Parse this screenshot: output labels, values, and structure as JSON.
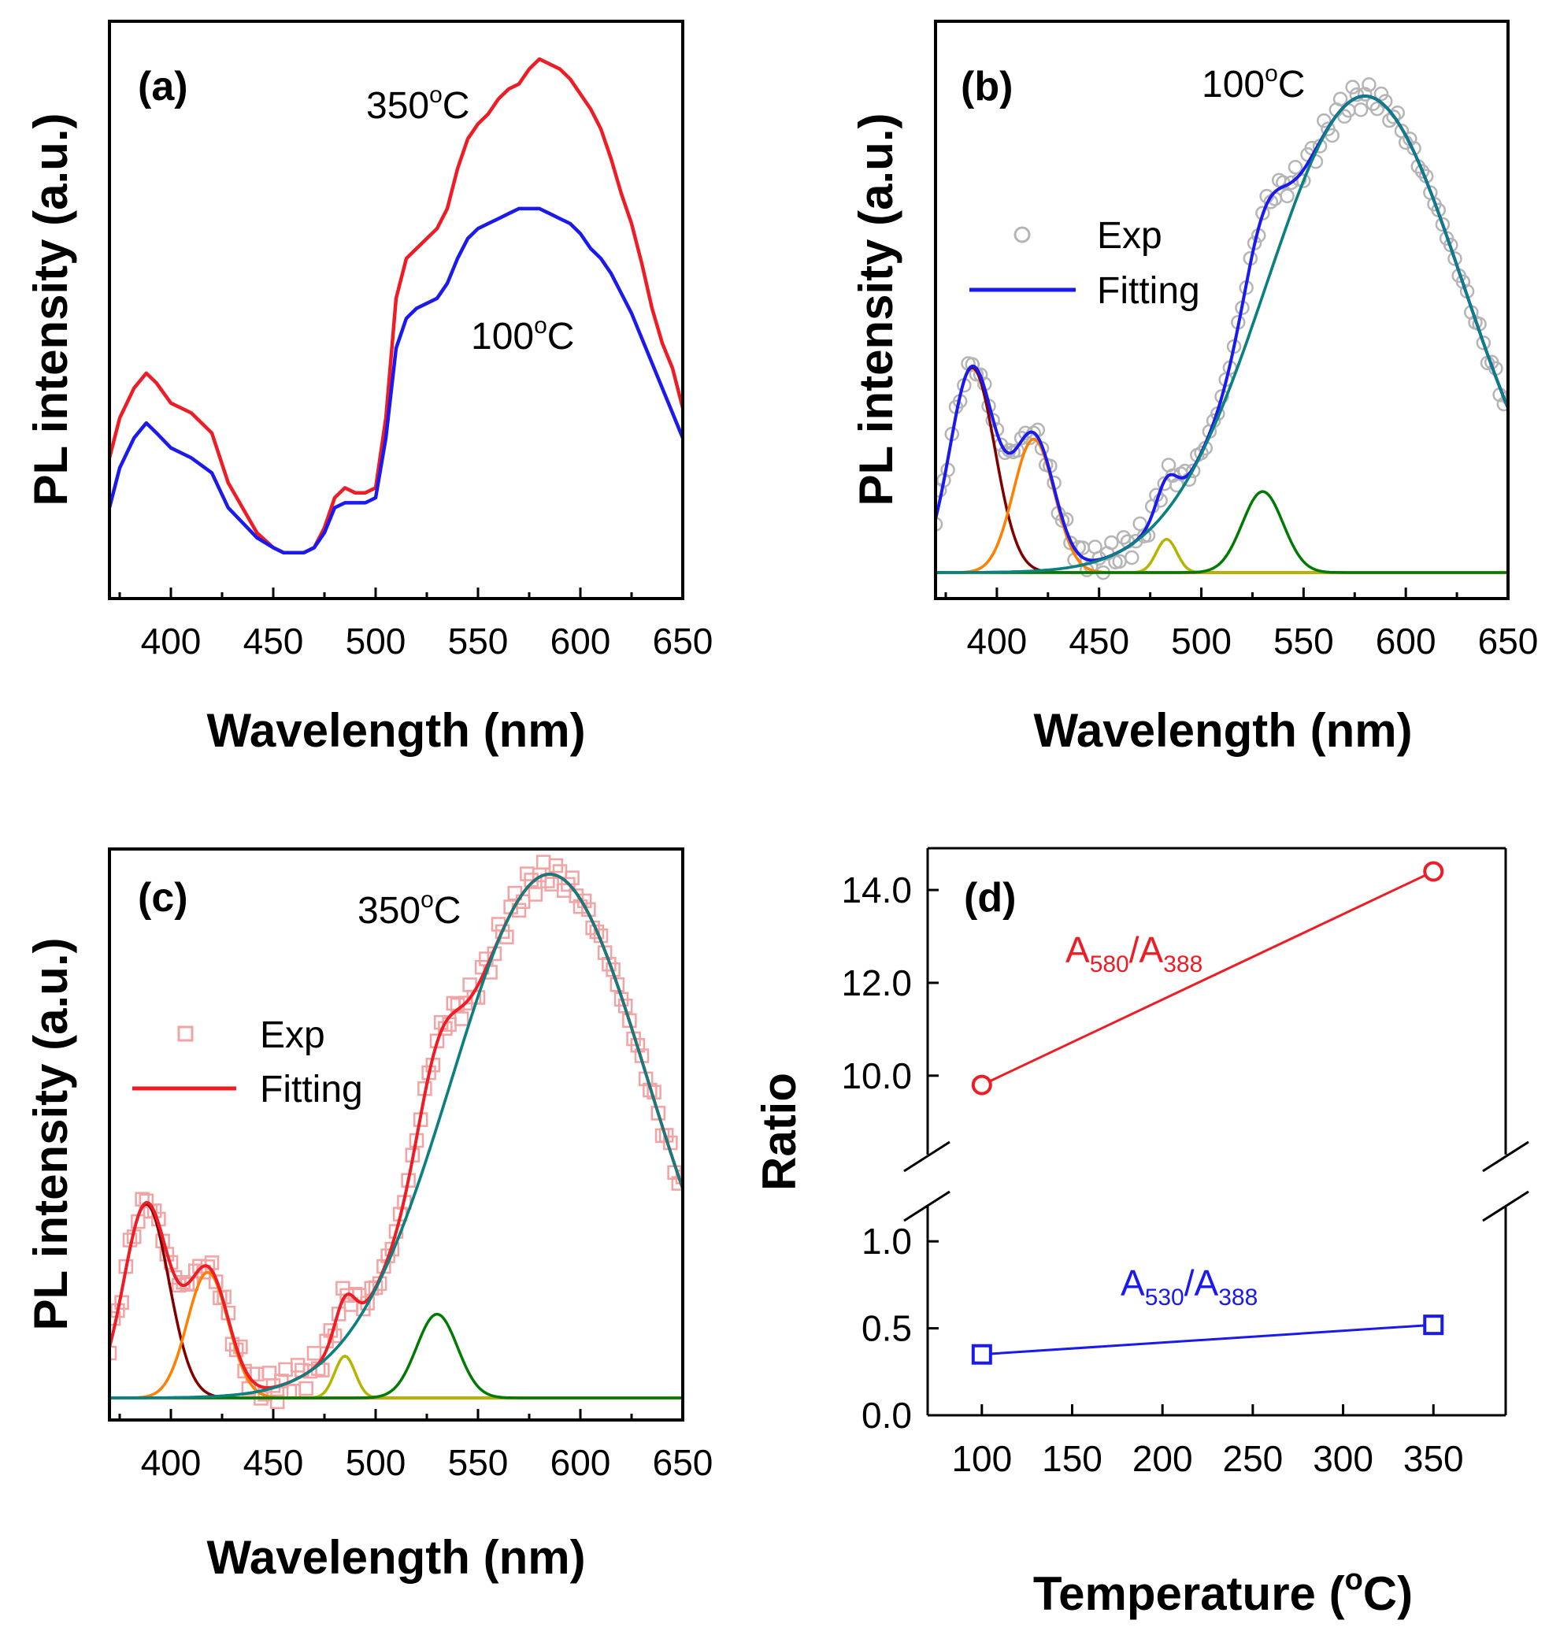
{
  "chart_data": [
    {
      "panel": "(a)",
      "type": "line",
      "xlabel": "Wavelength (nm)",
      "ylabel": "PL intensity (a.u.)",
      "xlim": [
        370,
        650
      ],
      "xticks": [
        400,
        450,
        500,
        550,
        600,
        650
      ],
      "ylim": [
        0,
        1
      ],
      "annotations": [
        {
          "text": "350",
          "sup": "o",
          "tail": "C",
          "series": 0
        },
        {
          "text": "100",
          "sup": "o",
          "tail": "C",
          "series": 1
        }
      ],
      "series": [
        {
          "color": "#ee1c25",
          "x": [
            370,
            375,
            382,
            388,
            393,
            400,
            410,
            420,
            428,
            435,
            442,
            450,
            455,
            460,
            465,
            470,
            475,
            480,
            485,
            490,
            495,
            500,
            505,
            510,
            515,
            520,
            525,
            530,
            535,
            540,
            545,
            550,
            555,
            560,
            565,
            570,
            575,
            580,
            585,
            590,
            595,
            600,
            605,
            610,
            615,
            620,
            625,
            630,
            635,
            640,
            645,
            650
          ],
          "y": [
            0.2,
            0.28,
            0.34,
            0.37,
            0.35,
            0.31,
            0.29,
            0.25,
            0.15,
            0.1,
            0.05,
            0.02,
            0.01,
            0.01,
            0.01,
            0.02,
            0.06,
            0.12,
            0.14,
            0.13,
            0.13,
            0.14,
            0.28,
            0.52,
            0.6,
            0.62,
            0.64,
            0.66,
            0.7,
            0.78,
            0.84,
            0.87,
            0.89,
            0.92,
            0.94,
            0.95,
            0.98,
            1.0,
            0.99,
            0.98,
            0.96,
            0.93,
            0.9,
            0.86,
            0.8,
            0.73,
            0.67,
            0.59,
            0.5,
            0.43,
            0.38,
            0.3
          ]
        },
        {
          "color": "#1a1aee",
          "x": [
            370,
            375,
            382,
            388,
            393,
            400,
            410,
            420,
            428,
            435,
            442,
            450,
            455,
            460,
            465,
            470,
            475,
            480,
            485,
            490,
            495,
            500,
            505,
            510,
            515,
            520,
            525,
            530,
            535,
            540,
            545,
            550,
            555,
            560,
            565,
            570,
            575,
            580,
            585,
            590,
            595,
            600,
            605,
            610,
            615,
            620,
            625,
            630,
            635,
            640,
            645,
            650
          ],
          "y": [
            0.1,
            0.18,
            0.24,
            0.27,
            0.25,
            0.22,
            0.2,
            0.17,
            0.1,
            0.07,
            0.04,
            0.02,
            0.01,
            0.01,
            0.01,
            0.02,
            0.05,
            0.1,
            0.11,
            0.11,
            0.11,
            0.12,
            0.24,
            0.42,
            0.48,
            0.5,
            0.51,
            0.52,
            0.55,
            0.6,
            0.64,
            0.66,
            0.67,
            0.68,
            0.69,
            0.7,
            0.7,
            0.7,
            0.69,
            0.68,
            0.67,
            0.65,
            0.62,
            0.6,
            0.57,
            0.53,
            0.49,
            0.44,
            0.39,
            0.34,
            0.29,
            0.24
          ]
        }
      ]
    },
    {
      "panel": "(b)",
      "type": "line",
      "xlabel": "Wavelength (nm)",
      "ylabel": "PL intensity (a.u.)",
      "xlim": [
        370,
        650
      ],
      "xticks": [
        400,
        450,
        500,
        550,
        600,
        650
      ],
      "ylim": [
        0,
        1
      ],
      "annotation": {
        "text": "100",
        "sup": "o",
        "tail": "C"
      },
      "legend": {
        "items": [
          "Exp",
          "Fitting"
        ],
        "position": "upper-left"
      },
      "exp_color": "#b5b5b5",
      "fit_color": "#1a1aee",
      "components": [
        {
          "center": 388,
          "amp": 0.43,
          "sigma": 11,
          "color": "#800000"
        },
        {
          "center": 418,
          "amp": 0.28,
          "sigma": 10,
          "color": "#ff8000"
        },
        {
          "center": 483,
          "amp": 0.07,
          "sigma": 5,
          "color": "#b5b500"
        },
        {
          "center": 530,
          "amp": 0.17,
          "sigma": 10,
          "color": "#007a00"
        },
        {
          "center": 580,
          "amp": 1.0,
          "sigma": 48,
          "color": "#0b8080"
        }
      ]
    },
    {
      "panel": "(c)",
      "type": "line",
      "xlabel": "Wavelength (nm)",
      "ylabel": "PL intensity (a.u.)",
      "xlim": [
        370,
        650
      ],
      "xticks": [
        400,
        450,
        500,
        550,
        600,
        650
      ],
      "ylim": [
        0,
        1
      ],
      "annotation": {
        "text": "350",
        "sup": "o",
        "tail": "C"
      },
      "legend": {
        "items": [
          "Exp",
          "Fitting"
        ],
        "position": "middle-left"
      },
      "exp_color": "#f3a3a3",
      "fit_color": "#ee1c25",
      "components": [
        {
          "center": 388,
          "amp": 0.37,
          "sigma": 11,
          "color": "#800000"
        },
        {
          "center": 418,
          "amp": 0.24,
          "sigma": 10,
          "color": "#ff8000"
        },
        {
          "center": 485,
          "amp": 0.08,
          "sigma": 5,
          "color": "#b5b500"
        },
        {
          "center": 530,
          "amp": 0.16,
          "sigma": 10,
          "color": "#007a00"
        },
        {
          "center": 585,
          "amp": 1.0,
          "sigma": 48,
          "color": "#0b8080"
        }
      ]
    },
    {
      "panel": "(d)",
      "type": "scatter",
      "xlabel": "Temperature (",
      "xlabel_sup": "o",
      "xlabel_tail": "C)",
      "ylabel": "Ratio",
      "xlim": [
        70,
        390
      ],
      "xticks": [
        100,
        150,
        200,
        250,
        300,
        350
      ],
      "y_break": true,
      "ylim_lower": [
        0,
        1.2
      ],
      "ylim_upper": [
        8.3,
        14.9
      ],
      "yticks_lower": [
        "0.0",
        "0.5",
        "1.0"
      ],
      "yticks_upper": [
        "10.0",
        "12.0",
        "14.0"
      ],
      "series": [
        {
          "label_main": "A",
          "sub1": "580",
          "sep": "/A",
          "sub2": "388",
          "color": "#ee1c25",
          "marker": "circle",
          "x": [
            100,
            350
          ],
          "y": [
            9.8,
            14.4
          ]
        },
        {
          "label_main": "A",
          "sub1": "530",
          "sep": "/A",
          "sub2": "388",
          "color": "#1a1aee",
          "marker": "square",
          "x": [
            100,
            350
          ],
          "y": [
            0.35,
            0.52
          ]
        }
      ]
    }
  ]
}
